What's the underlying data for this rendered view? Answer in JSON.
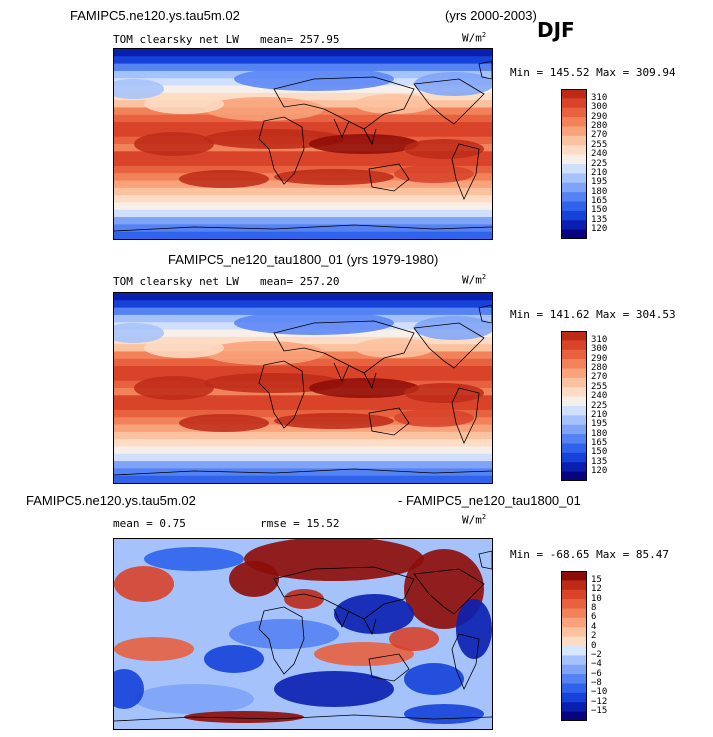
{
  "season": "DJF",
  "colors": {
    "abs_palette": [
      "#08047f",
      "#0a1fb0",
      "#1542d8",
      "#2f63ec",
      "#5683f4",
      "#7ea3f7",
      "#a5c2fa",
      "#cfdffc",
      "#f7f0ea",
      "#fcdcc4",
      "#fbc2a0",
      "#f8a37b",
      "#f2825a",
      "#e8623f",
      "#d8432a",
      "#bd2a18",
      "#8e0c07"
    ],
    "diff_palette": [
      "#08047f",
      "#0a1fb0",
      "#1542d8",
      "#2f63ec",
      "#5683f4",
      "#7ea3f7",
      "#a5c2fa",
      "#d8e6fd",
      "#fcdcc4",
      "#fbc2a0",
      "#f8a37b",
      "#f2825a",
      "#e8623f",
      "#d8432a",
      "#bd2a18",
      "#8e0c07"
    ]
  },
  "panels": [
    {
      "title_left": "FAMIPC5.ne120.ys.tau5m.02",
      "title_right": "(yrs 2000-2003)",
      "variable": "TOM clearsky net LW",
      "mean": "mean= 257.95",
      "units": "W/m",
      "units_exp": "2",
      "minmax": "Min = 145.52 Max = 309.94"
    },
    {
      "title_center": "FAMIPC5_ne120_tau1800_01 (yrs 1979-1980)",
      "variable": "TOM clearsky net LW",
      "mean": "mean= 257.20",
      "units": "W/m",
      "units_exp": "2",
      "minmax": "Min = 141.62 Max = 304.53"
    },
    {
      "title_left": "FAMIPC5.ne120.ys.tau5m.02",
      "title_right": "- FAMIPC5_ne120_tau1800_01",
      "mean": "mean =   0.75",
      "rmse": "rmse =  15.52",
      "units": "W/m",
      "units_exp": "2",
      "minmax": "Min = -68.65 Max =  85.47"
    }
  ],
  "chart_data": [
    {
      "type": "heatmap",
      "title": "FAMIPC5.ne120.ys.tau5m.02 (yrs 2000-2003) TOM clearsky net LW",
      "mean": 257.95,
      "min": 145.52,
      "max": 309.94,
      "units": "W/m2",
      "colorbar_levels": [
        120,
        135,
        150,
        165,
        180,
        195,
        210,
        225,
        240,
        255,
        270,
        280,
        290,
        300,
        310
      ],
      "colorbar_labels": [
        "310",
        "300",
        "290",
        "280",
        "270",
        "255",
        "240",
        "225",
        "210",
        "195",
        "180",
        "165",
        "150",
        "135",
        "120"
      ]
    },
    {
      "type": "heatmap",
      "title": "FAMIPC5_ne120_tau1800_01 (yrs 1979-1980) TOM clearsky net LW",
      "mean": 257.2,
      "min": 141.62,
      "max": 304.53,
      "units": "W/m2",
      "colorbar_levels": [
        120,
        135,
        150,
        165,
        180,
        195,
        210,
        225,
        240,
        255,
        270,
        280,
        290,
        300,
        310
      ],
      "colorbar_labels": [
        "310",
        "300",
        "290",
        "280",
        "270",
        "255",
        "240",
        "225",
        "210",
        "195",
        "180",
        "165",
        "150",
        "135",
        "120"
      ]
    },
    {
      "type": "heatmap",
      "title": "FAMIPC5.ne120.ys.tau5m.02 - FAMIPC5_ne120_tau1800_01",
      "mean": 0.75,
      "rmse": 15.52,
      "min": -68.65,
      "max": 85.47,
      "units": "W/m2",
      "colorbar_levels": [
        -15,
        -12,
        -10,
        -8,
        -6,
        -4,
        -2,
        0,
        2,
        4,
        6,
        8,
        10,
        12,
        15
      ],
      "colorbar_labels": [
        "15",
        "12",
        "10",
        "8",
        "6",
        "4",
        "2",
        "0",
        "−2",
        "−4",
        "−6",
        "−8",
        "−10",
        "−12",
        "−15"
      ]
    }
  ]
}
